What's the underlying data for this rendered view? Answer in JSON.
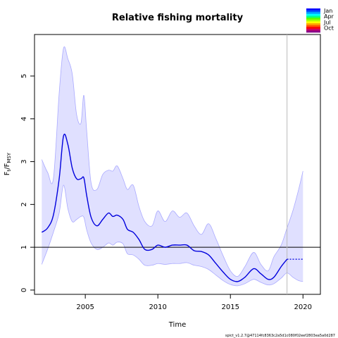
{
  "chart_data": {
    "type": "line",
    "title": "Relative fishing mortality",
    "xlabel": "Time",
    "ylabel": {
      "base": "F",
      "sub1": "t",
      "mid": "/F",
      "sub2": "MSY"
    },
    "xlim": [
      2001.5,
      2021.2
    ],
    "ylim": [
      -0.1,
      5.97
    ],
    "xticks": [
      2005,
      2010,
      2015,
      2020
    ],
    "yticks": [
      0,
      1,
      2,
      3,
      4,
      5
    ],
    "reference_line_y": 1,
    "vline_x": 2018.9,
    "series": [
      {
        "role": "estimate",
        "color": "#0000dd",
        "x": [
          2002.0,
          2002.4,
          2002.8,
          2003.2,
          2003.5,
          2003.8,
          2004.1,
          2004.4,
          2004.7,
          2004.9,
          2005.1,
          2005.4,
          2005.8,
          2006.2,
          2006.6,
          2006.9,
          2007.2,
          2007.6,
          2007.9,
          2008.3,
          2008.7,
          2009.1,
          2009.6,
          2010.0,
          2010.5,
          2011.0,
          2011.5,
          2012.0,
          2012.5,
          2013.0,
          2013.5,
          2014.0,
          2014.5,
          2015.0,
          2015.5,
          2016.0,
          2016.6,
          2017.1,
          2017.6,
          2018.0,
          2018.5,
          2018.9
        ],
        "values": [
          1.35,
          1.45,
          1.75,
          2.6,
          3.6,
          3.4,
          2.85,
          2.6,
          2.6,
          2.62,
          2.2,
          1.7,
          1.5,
          1.65,
          1.8,
          1.72,
          1.75,
          1.65,
          1.42,
          1.35,
          1.18,
          0.95,
          0.95,
          1.05,
          1.0,
          1.05,
          1.05,
          1.05,
          0.92,
          0.9,
          0.82,
          0.62,
          0.42,
          0.25,
          0.2,
          0.3,
          0.5,
          0.38,
          0.25,
          0.3,
          0.55,
          0.72
        ]
      },
      {
        "role": "forecast",
        "color": "#0000dd",
        "x": [
          2018.9,
          2020.0
        ],
        "values": [
          0.72,
          0.72
        ]
      }
    ],
    "ci_band": {
      "fill": "#e0e0ff",
      "stroke": "#aaaaff",
      "x": [
        2002.0,
        2002.4,
        2002.8,
        2003.2,
        2003.5,
        2003.8,
        2004.1,
        2004.4,
        2004.7,
        2004.9,
        2005.1,
        2005.4,
        2005.8,
        2006.2,
        2006.6,
        2006.9,
        2007.2,
        2007.6,
        2007.9,
        2008.3,
        2008.7,
        2009.1,
        2009.6,
        2010.0,
        2010.5,
        2011.0,
        2011.5,
        2012.0,
        2012.5,
        2013.0,
        2013.5,
        2014.0,
        2014.5,
        2015.0,
        2015.5,
        2016.0,
        2016.6,
        2017.1,
        2017.6,
        2018.0,
        2018.5,
        2018.9,
        2019.3,
        2019.7,
        2020.0
      ],
      "upper": [
        3.05,
        2.75,
        2.6,
        4.6,
        5.65,
        5.4,
        5.05,
        4.1,
        3.9,
        4.55,
        3.7,
        2.5,
        2.35,
        2.7,
        2.8,
        2.78,
        2.9,
        2.6,
        2.35,
        2.45,
        1.95,
        1.6,
        1.5,
        1.85,
        1.6,
        1.85,
        1.7,
        1.8,
        1.5,
        1.3,
        1.55,
        1.2,
        0.8,
        0.45,
        0.32,
        0.55,
        0.88,
        0.6,
        0.45,
        0.78,
        1.05,
        1.45,
        1.85,
        2.35,
        2.78
      ],
      "lower": [
        0.6,
        0.95,
        1.35,
        1.8,
        2.45,
        1.9,
        1.6,
        1.65,
        1.72,
        1.7,
        1.4,
        1.1,
        0.95,
        1.0,
        1.1,
        1.05,
        1.12,
        1.08,
        0.85,
        0.82,
        0.72,
        0.58,
        0.58,
        0.62,
        0.6,
        0.62,
        0.62,
        0.64,
        0.58,
        0.55,
        0.48,
        0.35,
        0.22,
        0.13,
        0.1,
        0.15,
        0.25,
        0.18,
        0.12,
        0.15,
        0.28,
        0.4,
        0.3,
        0.22,
        0.2
      ]
    },
    "legend": {
      "placement": "top-right",
      "labels": [
        "Jan",
        "Apr",
        "Jul",
        "Oct"
      ],
      "colors": [
        "#0000ff",
        "#0055ff",
        "#00aaff",
        "#00ffff",
        "#00ff88",
        "#55ff00",
        "#aaff00",
        "#ffff00",
        "#ffaa00",
        "#ff5500",
        "#ff0000",
        "#cc0066",
        "#880088"
      ]
    }
  },
  "footer_text": "spict_v1.2.7@47114fc8363c2a5d1c080f02eef2803ea5a0d287"
}
